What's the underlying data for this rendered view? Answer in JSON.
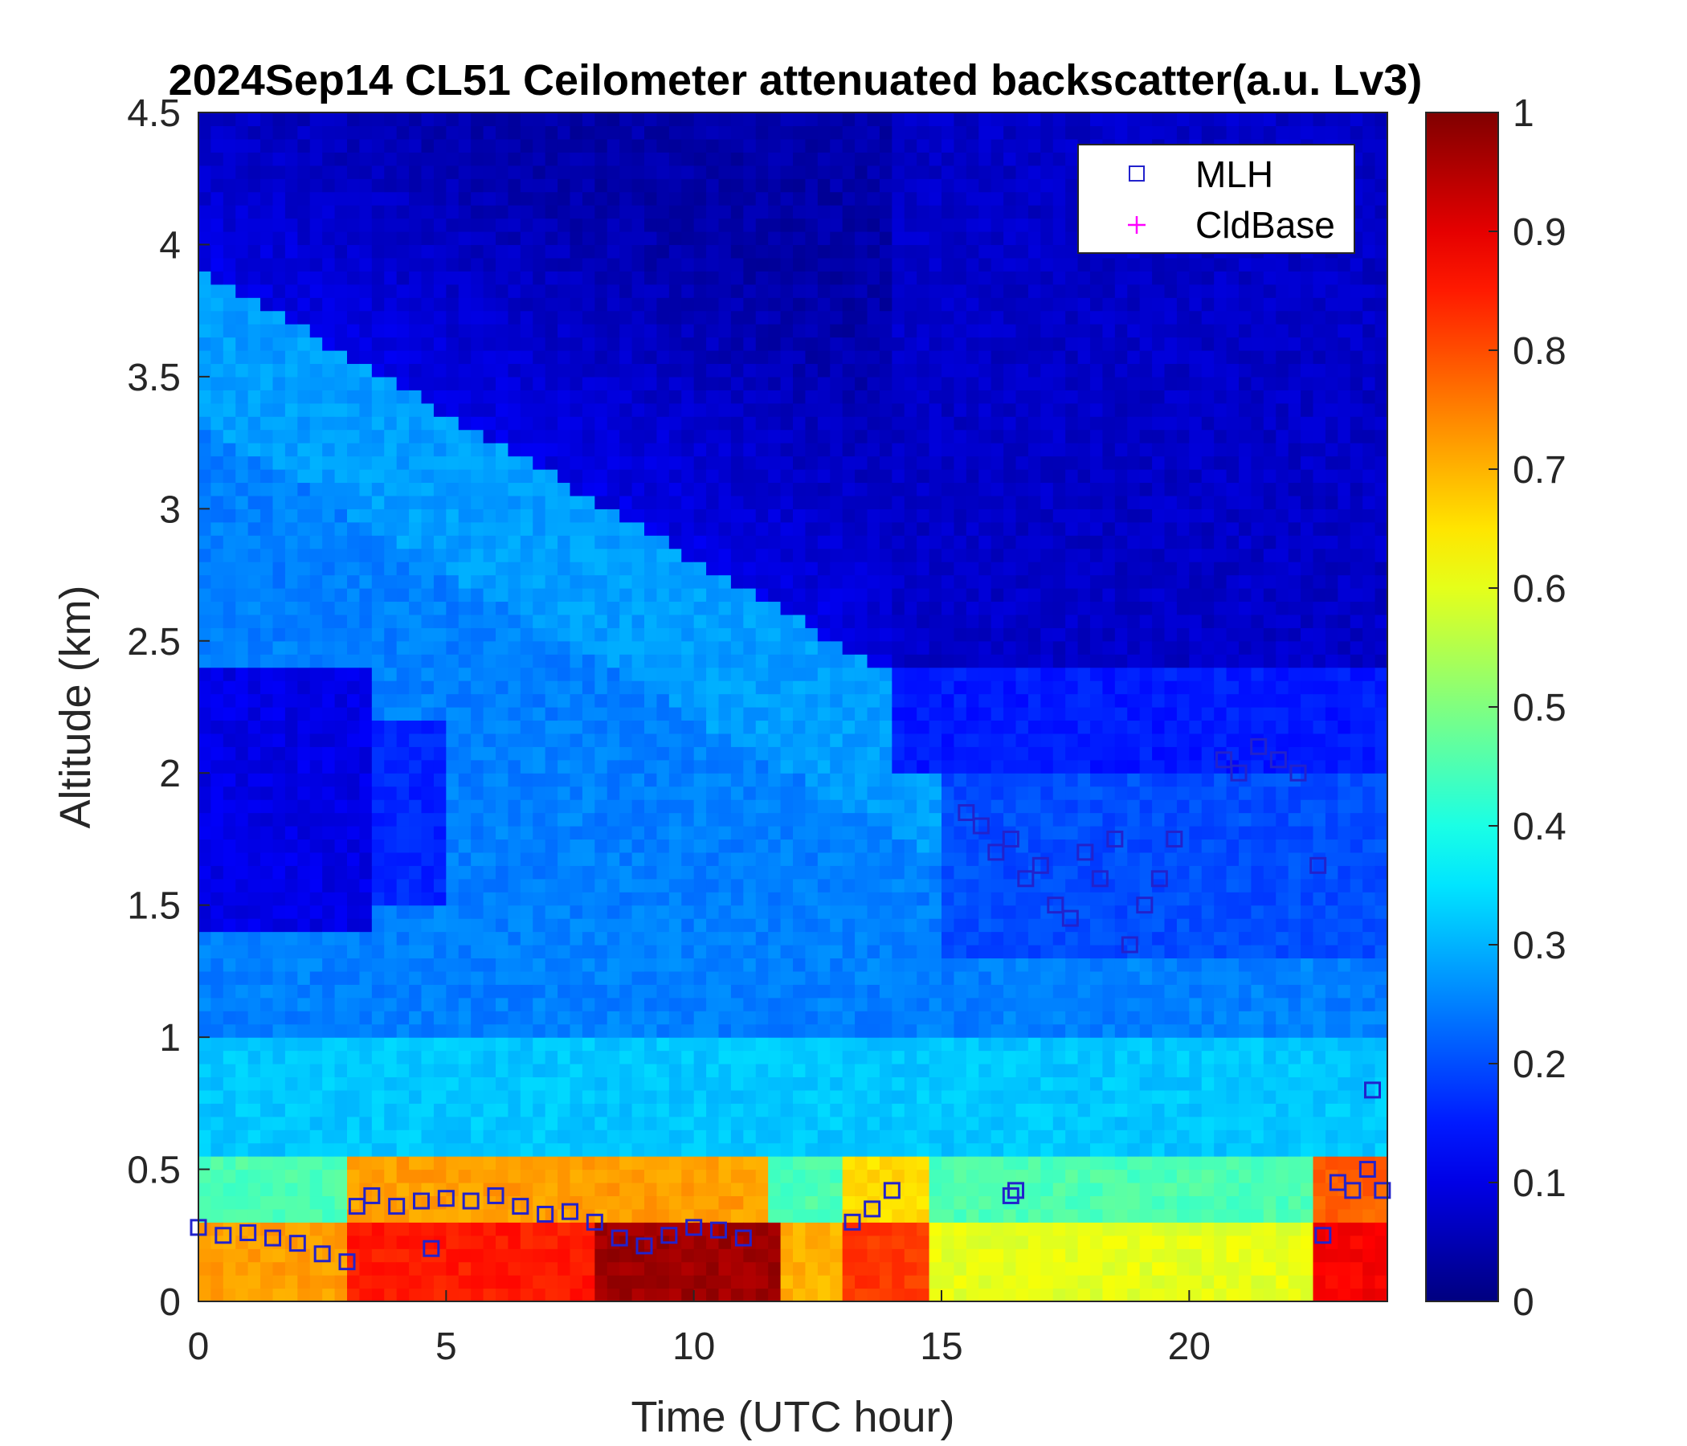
{
  "chart_data": {
    "type": "heatmap",
    "title": "2024Sep14 CL51 Ceilometer attenuated backscatter(a.u. Lv3)",
    "xlabel": "Time (UTC hour)",
    "ylabel": "Altitude (km)",
    "xlim": [
      0,
      24
    ],
    "ylim": [
      0,
      4.5
    ],
    "xticks": [
      "0",
      "5",
      "10",
      "15",
      "20"
    ],
    "yticks": [
      "0",
      "0.5",
      "1",
      "1.5",
      "2",
      "2.5",
      "3",
      "3.5",
      "4",
      "4.5"
    ],
    "colorbar": {
      "colormap": "jet",
      "limits": [
        0,
        1
      ],
      "ticks": [
        "0",
        "0.1",
        "0.2",
        "0.3",
        "0.4",
        "0.5",
        "0.6",
        "0.7",
        "0.8",
        "0.9",
        "1"
      ]
    },
    "legend": {
      "position": "top-right",
      "entries": [
        {
          "name": "MLH",
          "marker": "square",
          "color": "#2222cc"
        },
        {
          "name": "CldBase",
          "marker": "plus",
          "color": "#ff00ff"
        }
      ]
    },
    "series": [
      {
        "name": "MLH",
        "marker": "square",
        "color": "#2222cc",
        "x": [
          0,
          0.5,
          1,
          1.5,
          2,
          2.5,
          3,
          3.2,
          3.5,
          4,
          4.5,
          5,
          5.5,
          6,
          6.5,
          7,
          7.5,
          8,
          8.5,
          9,
          9.5,
          10,
          10.5,
          11,
          13.2,
          13.6,
          14,
          15.5,
          15.8,
          16.1,
          16.4,
          16.7,
          17,
          17.3,
          17.6,
          17.9,
          18.2,
          18.5,
          18.8,
          19.1,
          19.4,
          19.7,
          20.7,
          21,
          21.4,
          21.8,
          22.2,
          22.6,
          22.7,
          23,
          23.3,
          23.6,
          23.9,
          4.7,
          16.4,
          16.5,
          23.7
        ],
        "y": [
          0.28,
          0.25,
          0.26,
          0.24,
          0.22,
          0.18,
          0.15,
          0.36,
          0.4,
          0.36,
          0.38,
          0.39,
          0.38,
          0.4,
          0.36,
          0.33,
          0.34,
          0.3,
          0.24,
          0.21,
          0.25,
          0.28,
          0.27,
          0.24,
          0.3,
          0.35,
          0.42,
          1.85,
          1.8,
          1.7,
          1.75,
          1.6,
          1.65,
          1.5,
          1.45,
          1.7,
          1.6,
          1.75,
          1.35,
          1.5,
          1.6,
          1.75,
          2.05,
          2.0,
          2.1,
          2.05,
          2.0,
          1.65,
          0.25,
          0.45,
          0.42,
          0.5,
          0.42,
          0.2,
          0.4,
          0.42,
          0.8
        ]
      }
    ]
  }
}
